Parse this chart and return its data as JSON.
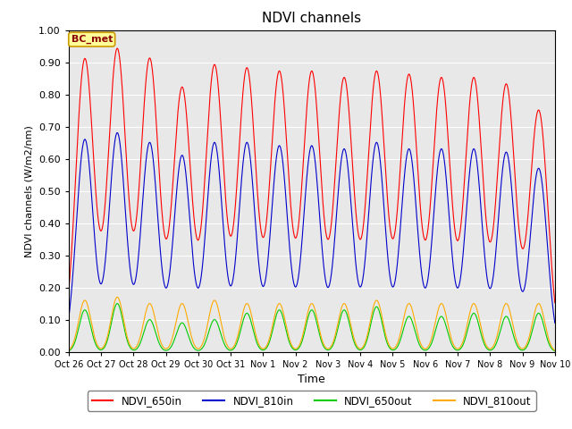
{
  "title": "NDVI channels",
  "xlabel": "Time",
  "ylabel": "NDVI channels (W/m2/nm)",
  "ylim": [
    0.0,
    1.0
  ],
  "background_color": "#e8e8e8",
  "annotation_text": "BC_met",
  "annotation_bg": "#ffff99",
  "annotation_border": "#cc9900",
  "num_days": 15,
  "tick_labels": [
    "Oct 26",
    "Oct 27",
    "Oct 28",
    "Oct 29",
    "Oct 30",
    "Oct 31",
    "Nov 1",
    "Nov 2",
    "Nov 3",
    "Nov 4",
    "Nov 5",
    "Nov 6",
    "Nov 7",
    "Nov 8",
    "Nov 9",
    "Nov 10"
  ],
  "colors": {
    "NDVI_650in": "#ff0000",
    "NDVI_810in": "#0000cc",
    "NDVI_650out": "#00cc00",
    "NDVI_810out": "#ffaa00"
  },
  "legend_labels": [
    "NDVI_650in",
    "NDVI_810in",
    "NDVI_650out",
    "NDVI_810out"
  ],
  "peak_650in": [
    0.91,
    0.94,
    0.91,
    0.82,
    0.89,
    0.88,
    0.87,
    0.87,
    0.85,
    0.87,
    0.86,
    0.85,
    0.85,
    0.83,
    0.75
  ],
  "peak_810in": [
    0.66,
    0.68,
    0.65,
    0.61,
    0.65,
    0.65,
    0.64,
    0.64,
    0.63,
    0.65,
    0.63,
    0.63,
    0.63,
    0.62,
    0.57
  ],
  "peak_650out": [
    0.13,
    0.15,
    0.1,
    0.09,
    0.1,
    0.12,
    0.13,
    0.13,
    0.13,
    0.14,
    0.11,
    0.11,
    0.12,
    0.11,
    0.12
  ],
  "peak_810out": [
    0.16,
    0.17,
    0.15,
    0.15,
    0.16,
    0.15,
    0.15,
    0.15,
    0.15,
    0.16,
    0.15,
    0.15,
    0.15,
    0.15,
    0.15
  ],
  "figsize": [
    6.4,
    4.8
  ],
  "dpi": 100
}
